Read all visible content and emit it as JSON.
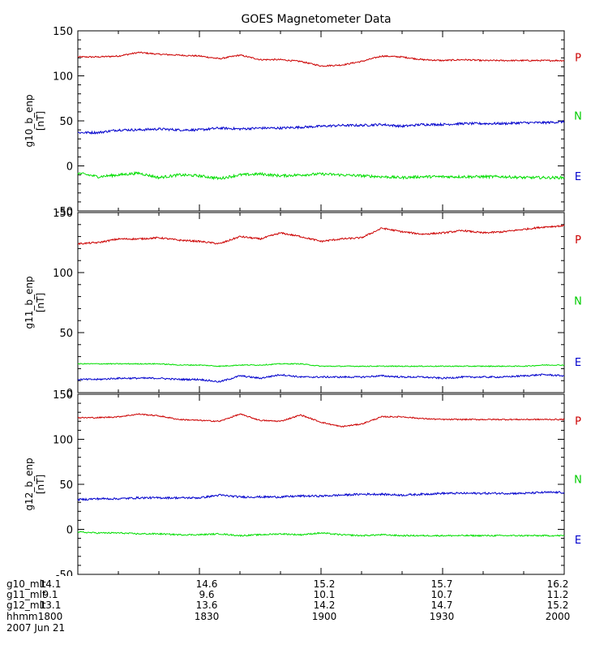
{
  "title": "GOES Magnetometer Data",
  "colors": {
    "P": "#cc0000",
    "N": "#0000cc",
    "E": "#00dd00"
  },
  "chart_data": [
    {
      "type": "line",
      "ylabel": "g10_b_enp",
      "yunit": "[nT]",
      "ylim": [
        -50,
        150
      ],
      "yticks": [
        150,
        100,
        50,
        0,
        -50
      ],
      "right_labels": [
        {
          "label": "P",
          "color": "#cc0000",
          "y": 120
        },
        {
          "label": "N",
          "color": "#00cc00",
          "y": 55
        },
        {
          "label": "E",
          "color": "#0000cc",
          "y": -12
        }
      ],
      "series": [
        {
          "color": "#cc0000",
          "noise": 0.8,
          "x": [
            1800,
            1805,
            1810,
            1815,
            1820,
            1825,
            1830,
            1835,
            1840,
            1845,
            1850,
            1855,
            1900,
            1905,
            1910,
            1915,
            1920,
            1925,
            1930,
            1935,
            1940,
            1945,
            1950,
            1955,
            2000
          ],
          "values": [
            121,
            121,
            122,
            126,
            124,
            123,
            122,
            119,
            123,
            118,
            118,
            116,
            111,
            112,
            116,
            122,
            121,
            118,
            117,
            118,
            117,
            117,
            117,
            117,
            117
          ]
        },
        {
          "color": "#0000cc",
          "noise": 1.3,
          "x": [
            1800,
            1805,
            1810,
            1815,
            1820,
            1825,
            1830,
            1835,
            1840,
            1845,
            1850,
            1855,
            1900,
            1905,
            1910,
            1915,
            1920,
            1925,
            1930,
            1935,
            1940,
            1945,
            1950,
            1955,
            2000
          ],
          "values": [
            37,
            37,
            40,
            40,
            41,
            40,
            40,
            42,
            41,
            42,
            42,
            43,
            44,
            45,
            45,
            46,
            44,
            46,
            46,
            47,
            47,
            47,
            48,
            48,
            49
          ]
        },
        {
          "color": "#00dd00",
          "noise": 1.5,
          "x": [
            1800,
            1805,
            1810,
            1815,
            1820,
            1825,
            1830,
            1835,
            1840,
            1845,
            1850,
            1855,
            1900,
            1905,
            1910,
            1915,
            1920,
            1925,
            1930,
            1935,
            1940,
            1945,
            1950,
            1955,
            2000
          ],
          "values": [
            -8,
            -12,
            -10,
            -8,
            -13,
            -10,
            -11,
            -14,
            -10,
            -9,
            -11,
            -10,
            -9,
            -10,
            -11,
            -12,
            -13,
            -12,
            -12,
            -12,
            -12,
            -12,
            -13,
            -13,
            -13
          ]
        }
      ]
    },
    {
      "type": "line",
      "ylabel": "g11_b_enp",
      "yunit": "[nT]",
      "ylim": [
        0,
        150
      ],
      "yticks": [
        150,
        100,
        50,
        0
      ],
      "right_labels": [
        {
          "label": "P",
          "color": "#cc0000",
          "y": 127
        },
        {
          "label": "N",
          "color": "#00cc00",
          "y": 76
        },
        {
          "label": "E",
          "color": "#0000cc",
          "y": 25
        }
      ],
      "series": [
        {
          "color": "#cc0000",
          "noise": 0.7,
          "x": [
            1800,
            1805,
            1810,
            1815,
            1820,
            1825,
            1830,
            1835,
            1840,
            1845,
            1850,
            1855,
            1900,
            1905,
            1910,
            1915,
            1920,
            1925,
            1930,
            1935,
            1940,
            1945,
            1950,
            1955,
            2000
          ],
          "values": [
            124,
            125,
            128,
            128,
            129,
            127,
            126,
            124,
            130,
            128,
            133,
            130,
            126,
            128,
            129,
            137,
            134,
            132,
            133,
            135,
            133,
            134,
            136,
            138,
            139
          ]
        },
        {
          "color": "#0000cc",
          "noise": 0.7,
          "x": [
            1800,
            1805,
            1810,
            1815,
            1820,
            1825,
            1830,
            1835,
            1840,
            1845,
            1850,
            1855,
            1900,
            1905,
            1910,
            1915,
            1920,
            1925,
            1930,
            1935,
            1940,
            1945,
            1950,
            1955,
            2000
          ],
          "values": [
            11,
            11,
            12,
            12,
            12,
            11,
            11,
            9,
            14,
            12,
            15,
            13,
            13,
            13,
            13,
            14,
            13,
            13,
            12,
            13,
            13,
            13,
            14,
            15,
            14
          ]
        },
        {
          "color": "#00dd00",
          "noise": 0.4,
          "x": [
            1800,
            1805,
            1810,
            1815,
            1820,
            1825,
            1830,
            1835,
            1840,
            1845,
            1850,
            1855,
            1900,
            1905,
            1910,
            1915,
            1920,
            1925,
            1930,
            1935,
            1940,
            1945,
            1950,
            1955,
            2000
          ],
          "values": [
            24,
            24,
            24,
            24,
            24,
            23,
            23,
            22,
            23,
            23,
            24,
            24,
            22,
            22,
            22,
            22,
            22,
            22,
            22,
            22,
            22,
            22,
            22,
            23,
            23
          ]
        }
      ]
    },
    {
      "type": "line",
      "ylabel": "g12_b_enp",
      "yunit": "[nT]",
      "ylim": [
        -50,
        150
      ],
      "yticks": [
        150,
        100,
        50,
        0,
        -50
      ],
      "right_labels": [
        {
          "label": "P",
          "color": "#cc0000",
          "y": 120
        },
        {
          "label": "N",
          "color": "#00cc00",
          "y": 55
        },
        {
          "label": "E",
          "color": "#0000cc",
          "y": -12
        }
      ],
      "series": [
        {
          "color": "#cc0000",
          "noise": 0.7,
          "x": [
            1800,
            1805,
            1810,
            1815,
            1820,
            1825,
            1830,
            1835,
            1840,
            1845,
            1850,
            1855,
            1900,
            1905,
            1910,
            1915,
            1920,
            1925,
            1930,
            1935,
            1940,
            1945,
            1950,
            1955,
            2000
          ],
          "values": [
            124,
            124,
            125,
            128,
            126,
            122,
            121,
            120,
            128,
            121,
            120,
            127,
            119,
            114,
            117,
            125,
            125,
            123,
            122,
            122,
            122,
            122,
            122,
            122,
            122
          ]
        },
        {
          "color": "#0000cc",
          "noise": 1.1,
          "x": [
            1800,
            1805,
            1810,
            1815,
            1820,
            1825,
            1830,
            1835,
            1840,
            1845,
            1850,
            1855,
            1900,
            1905,
            1910,
            1915,
            1920,
            1925,
            1930,
            1935,
            1940,
            1945,
            1950,
            1955,
            2000
          ],
          "values": [
            33,
            34,
            34,
            35,
            35,
            35,
            35,
            38,
            36,
            36,
            36,
            37,
            37,
            38,
            39,
            39,
            38,
            39,
            40,
            40,
            40,
            40,
            40,
            41,
            41
          ]
        },
        {
          "color": "#00dd00",
          "noise": 0.8,
          "x": [
            1800,
            1805,
            1810,
            1815,
            1820,
            1825,
            1830,
            1835,
            1840,
            1845,
            1850,
            1855,
            1900,
            1905,
            1910,
            1915,
            1920,
            1925,
            1930,
            1935,
            1940,
            1945,
            1950,
            1955,
            2000
          ],
          "values": [
            -3,
            -4,
            -4,
            -5,
            -5,
            -6,
            -6,
            -5,
            -7,
            -6,
            -5,
            -6,
            -4,
            -6,
            -7,
            -6,
            -7,
            -7,
            -7,
            -7,
            -7,
            -7,
            -7,
            -7,
            -7
          ]
        }
      ]
    }
  ],
  "bottom_axis": {
    "rows": [
      {
        "label": "g10_mlt",
        "values": [
          "14.1",
          "14.6",
          "15.2",
          "15.7",
          "16.2"
        ]
      },
      {
        "label": "g11_mlt",
        "values": [
          "9.1",
          "9.6",
          "10.1",
          "10.7",
          "11.2"
        ]
      },
      {
        "label": "g12_mlt",
        "values": [
          "13.1",
          "13.6",
          "14.2",
          "14.7",
          "15.2"
        ]
      },
      {
        "label": "hhmm",
        "values": [
          "1800",
          "1830",
          "1900",
          "1930",
          "2000"
        ]
      }
    ],
    "date": "2007 Jun 21"
  }
}
